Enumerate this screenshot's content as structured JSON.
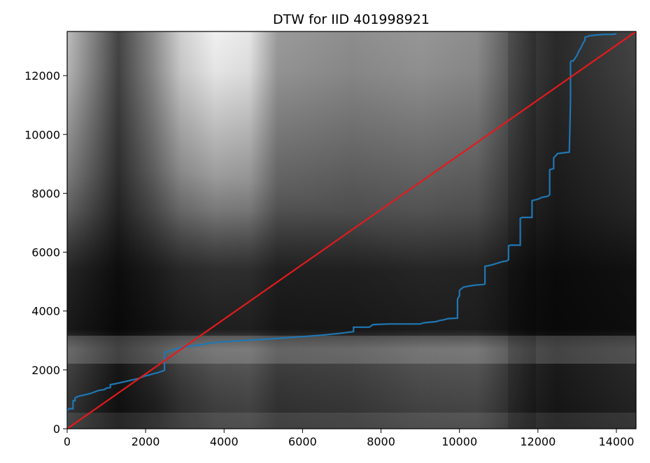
{
  "chart_data": {
    "type": "line",
    "title": "DTW for IID 401998921",
    "xlabel": "",
    "ylabel": "",
    "xlim": [
      0,
      14500
    ],
    "ylim": [
      0,
      13500
    ],
    "xticks": [
      0,
      2000,
      4000,
      6000,
      8000,
      10000,
      12000,
      14000
    ],
    "yticks": [
      0,
      2000,
      4000,
      6000,
      8000,
      10000,
      12000
    ],
    "xtick_labels": [
      "0",
      "2000",
      "4000",
      "6000",
      "8000",
      "10000",
      "12000",
      "14000"
    ],
    "ytick_labels": [
      "0",
      "2000",
      "4000",
      "6000",
      "8000",
      "10000",
      "12000"
    ],
    "grid": false,
    "background": "grayscale DTW cost matrix heatmap",
    "series": [
      {
        "color": "#1f77b4",
        "x": [
          0,
          0,
          40,
          150,
          150,
          200,
          200,
          280,
          450,
          600,
          700,
          800,
          950,
          1000,
          1100,
          1100,
          1200,
          1300,
          1400,
          1500,
          1600,
          1700,
          1800,
          1900,
          2000,
          2100,
          2200,
          2300,
          2400,
          2450,
          2480,
          2480,
          2550,
          2700,
          2850,
          3000,
          3200,
          3400,
          3600,
          3700,
          3800,
          4500,
          5500,
          6500,
          7000,
          7300,
          7300,
          7700,
          7800,
          8200,
          9000,
          9100,
          9400,
          9500,
          9600,
          9700,
          9950,
          9950,
          10000,
          10000,
          10050,
          10100,
          10200,
          10300,
          10400,
          10600,
          10650,
          10650,
          10800,
          10900,
          11000,
          11100,
          11200,
          11250,
          11250,
          11300,
          11550,
          11550,
          11600,
          11850,
          11850,
          12000,
          12100,
          12250,
          12300,
          12300,
          12400,
          12400,
          12500,
          12800,
          12820,
          12830,
          12830,
          12850,
          12900,
          13000,
          13050,
          13100,
          13150,
          13200,
          13200,
          13300,
          13500,
          13700,
          13900,
          14000
        ],
        "y": [
          0,
          600,
          680,
          680,
          950,
          950,
          1050,
          1100,
          1150,
          1200,
          1250,
          1300,
          1330,
          1380,
          1400,
          1500,
          1520,
          1550,
          1580,
          1610,
          1640,
          1670,
          1700,
          1750,
          1800,
          1830,
          1870,
          1900,
          1950,
          1970,
          1990,
          2580,
          2620,
          2680,
          2740,
          2780,
          2820,
          2850,
          2900,
          2920,
          2940,
          3000,
          3080,
          3180,
          3250,
          3300,
          3450,
          3450,
          3540,
          3560,
          3560,
          3600,
          3640,
          3680,
          3700,
          3740,
          3760,
          4400,
          4520,
          4700,
          4760,
          4810,
          4840,
          4860,
          4880,
          4900,
          4920,
          5520,
          5560,
          5600,
          5640,
          5680,
          5700,
          5740,
          6220,
          6240,
          6240,
          7150,
          7180,
          7180,
          7750,
          7800,
          7860,
          7900,
          7950,
          8800,
          8840,
          9200,
          9350,
          9400,
          10500,
          11200,
          12450,
          12500,
          12500,
          12700,
          12850,
          12950,
          13100,
          13200,
          13300,
          13350,
          13380,
          13400,
          13400,
          13420
        ]
      },
      {
        "color": "#e41a1c",
        "x": [
          0,
          14500
        ],
        "y": [
          0,
          13500
        ]
      }
    ]
  }
}
